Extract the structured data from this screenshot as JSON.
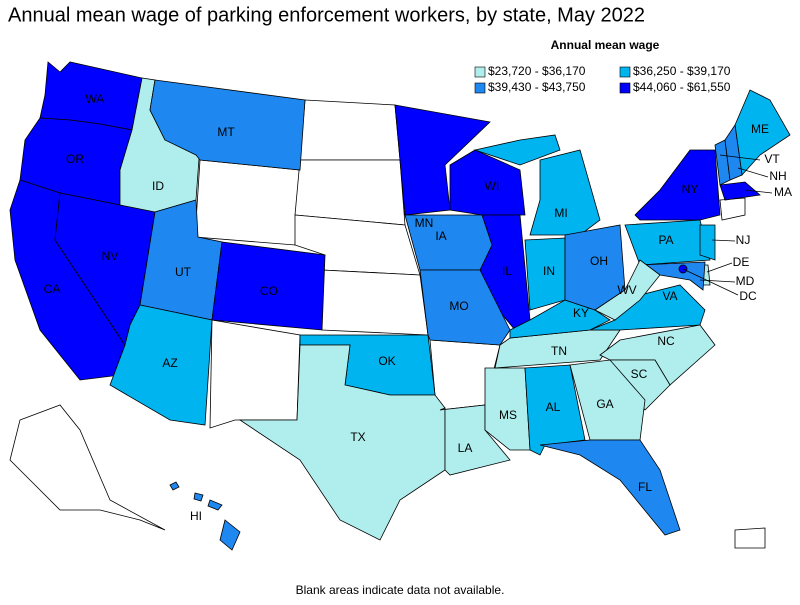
{
  "title": "Annual mean wage of parking enforcement workers, by state, May 2022",
  "legend": {
    "title": "Annual mean wage",
    "items": [
      {
        "label": "$23,720 - $36,170",
        "color": "#b0eeee"
      },
      {
        "label": "$36,250 - $39,170",
        "color": "#00b4f0"
      },
      {
        "label": "$39,430 - $43,750",
        "color": "#1e88f0"
      },
      {
        "label": "$44,060 - $61,550",
        "color": "#0000ff"
      }
    ]
  },
  "states": [
    {
      "label": "WA",
      "color": "#0000ff"
    },
    {
      "label": "OR",
      "color": "#0000ff"
    },
    {
      "label": "CA",
      "color": "#0000ff"
    },
    {
      "label": "NV",
      "color": "#0000ff"
    },
    {
      "label": "ID",
      "color": "#b0eeee"
    },
    {
      "label": "MT",
      "color": "#1e88f0"
    },
    {
      "label": "UT",
      "color": "#1e88f0"
    },
    {
      "label": "AZ",
      "color": "#00b4f0"
    },
    {
      "label": "CO",
      "color": "#0000ff"
    },
    {
      "label": "MN",
      "color": "#0000ff"
    },
    {
      "label": "WI",
      "color": "#0000ff"
    },
    {
      "label": "IL",
      "color": "#0000ff"
    },
    {
      "label": "IA",
      "color": "#1e88f0"
    },
    {
      "label": "MO",
      "color": "#1e88f0"
    },
    {
      "label": "OK",
      "color": "#00b4f0"
    },
    {
      "label": "TX",
      "color": "#b0eeee"
    },
    {
      "label": "LA",
      "color": "#b0eeee"
    },
    {
      "label": "MS",
      "color": "#b0eeee"
    },
    {
      "label": "AL",
      "color": "#00b4f0"
    },
    {
      "label": "TN",
      "color": "#b0eeee"
    },
    {
      "label": "KY",
      "color": "#00b4f0"
    },
    {
      "label": "IN",
      "color": "#00b4f0"
    },
    {
      "label": "MI",
      "color": "#00b4f0"
    },
    {
      "label": "OH",
      "color": "#1e88f0"
    },
    {
      "label": "PA",
      "color": "#00b4f0"
    },
    {
      "label": "NY",
      "color": "#0000ff"
    },
    {
      "label": "ME",
      "color": "#00b4f0"
    },
    {
      "label": "VT",
      "color": "#1e88f0"
    },
    {
      "label": "NH",
      "color": "#1e88f0"
    },
    {
      "label": "MA",
      "color": "#0000ff"
    },
    {
      "label": "NJ",
      "color": "#00b4f0"
    },
    {
      "label": "DE",
      "color": "#b0eeee"
    },
    {
      "label": "MD",
      "color": "#1e88f0"
    },
    {
      "label": "DC",
      "color": "#0000ff"
    },
    {
      "label": "VA",
      "color": "#00b4f0"
    },
    {
      "label": "WV",
      "color": "#b0eeee"
    },
    {
      "label": "NC",
      "color": "#b0eeee"
    },
    {
      "label": "SC",
      "color": "#b0eeee"
    },
    {
      "label": "GA",
      "color": "#b0eeee"
    },
    {
      "label": "FL",
      "color": "#1e88f0"
    },
    {
      "label": "HI",
      "color": "#1e88f0"
    }
  ],
  "note": "Blank areas indicate data not available."
}
